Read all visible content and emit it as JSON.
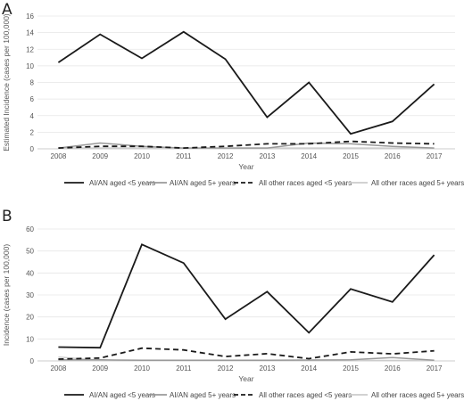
{
  "chart_data": [
    {
      "type": "line",
      "panel_label": "A",
      "xlabel": "Year",
      "ylabel": "Estimated Incidence (cases per 100,000)",
      "ylim": [
        0,
        16
      ],
      "yticks": [
        "0",
        "2",
        "4",
        "6",
        "8",
        "10",
        "12",
        "14",
        "16"
      ],
      "categories": [
        "2008",
        "2009",
        "2010",
        "2011",
        "2012",
        "2013",
        "2014",
        "2015",
        "2016",
        "2017"
      ],
      "grid": true,
      "legend": "bottom",
      "series": [
        {
          "name": "AI/AN aged <5 years",
          "color": "#1a1a1a",
          "dash": "solid",
          "values": [
            10.4,
            13.8,
            10.9,
            14.1,
            10.8,
            3.8,
            8.0,
            1.8,
            3.3,
            7.8
          ]
        },
        {
          "name": "AI/AN aged 5+ years",
          "color": "#999999",
          "dash": "solid",
          "values": [
            0.1,
            0.7,
            0.3,
            0.1,
            0.1,
            0.1,
            0.7,
            0.6,
            0.3,
            0.1
          ]
        },
        {
          "name": "All other races aged <5 years",
          "color": "#1a1a1a",
          "dash": "dashed",
          "values": [
            0.1,
            0.3,
            0.3,
            0.1,
            0.3,
            0.6,
            0.6,
            0.9,
            0.7,
            0.6
          ]
        },
        {
          "name": "All other races aged 5+ years",
          "color": "#cccccc",
          "dash": "solid",
          "values": [
            0.1,
            0.1,
            0.1,
            0.1,
            0.1,
            0.1,
            0.1,
            0.1,
            0.1,
            0.1
          ]
        }
      ]
    },
    {
      "type": "line",
      "panel_label": "B",
      "xlabel": "Year",
      "ylabel": "Incidence (cases per 100,000)",
      "ylim": [
        0,
        60
      ],
      "yticks": [
        "0",
        "10",
        "20",
        "30",
        "40",
        "50",
        "60"
      ],
      "categories": [
        "2008",
        "2009",
        "2010",
        "2011",
        "2012",
        "2013",
        "2014",
        "2015",
        "2016",
        "2017"
      ],
      "grid": true,
      "legend": "bottom",
      "series": [
        {
          "name": "AI/AN aged <5 years",
          "color": "#1a1a1a",
          "dash": "solid",
          "values": [
            6.3,
            6.0,
            53.0,
            44.5,
            19.0,
            31.5,
            12.8,
            32.7,
            26.8,
            48.2
          ]
        },
        {
          "name": "AI/AN aged 5+ years",
          "color": "#999999",
          "dash": "solid",
          "values": [
            0.5,
            0.5,
            0.3,
            0.3,
            0.3,
            0.3,
            0.4,
            0.5,
            1.5,
            0.3
          ]
        },
        {
          "name": "All other races aged <5 years",
          "color": "#1a1a1a",
          "dash": "dashed",
          "values": [
            0.8,
            1.3,
            5.8,
            5.0,
            2.0,
            3.3,
            1.0,
            4.1,
            3.2,
            4.6
          ]
        },
        {
          "name": "All other races aged 5+ years",
          "color": "#cccccc",
          "dash": "solid",
          "values": [
            1.8,
            0.2,
            0.2,
            0.2,
            0.2,
            0.2,
            0.2,
            0.2,
            0.2,
            0.2
          ]
        }
      ]
    }
  ]
}
